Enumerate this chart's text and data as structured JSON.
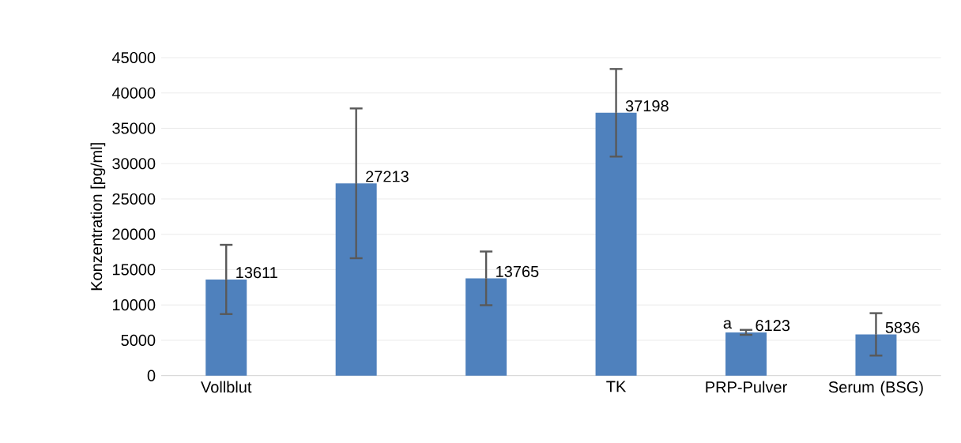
{
  "chart_data": {
    "type": "bar",
    "ylabel": "Konzentration [pg/ml]",
    "categories": [
      "Vollblut",
      null,
      null,
      "TK",
      "PRP-Pulver",
      "Serum (BSG)"
    ],
    "values": [
      13611,
      27213,
      13765,
      37198,
      6123,
      5836
    ],
    "errors": [
      4900,
      10600,
      3800,
      6200,
      350,
      3000
    ],
    "color": "#4f81bd",
    "ylim": [
      0,
      45000
    ],
    "yticks": [
      0,
      5000,
      10000,
      15000,
      20000,
      25000,
      30000,
      35000,
      40000,
      45000
    ],
    "grid": "y",
    "data_labels": true,
    "annotations": [
      {
        "text": "a",
        "x": "PRP-Pulver",
        "y": 6473
      }
    ]
  }
}
